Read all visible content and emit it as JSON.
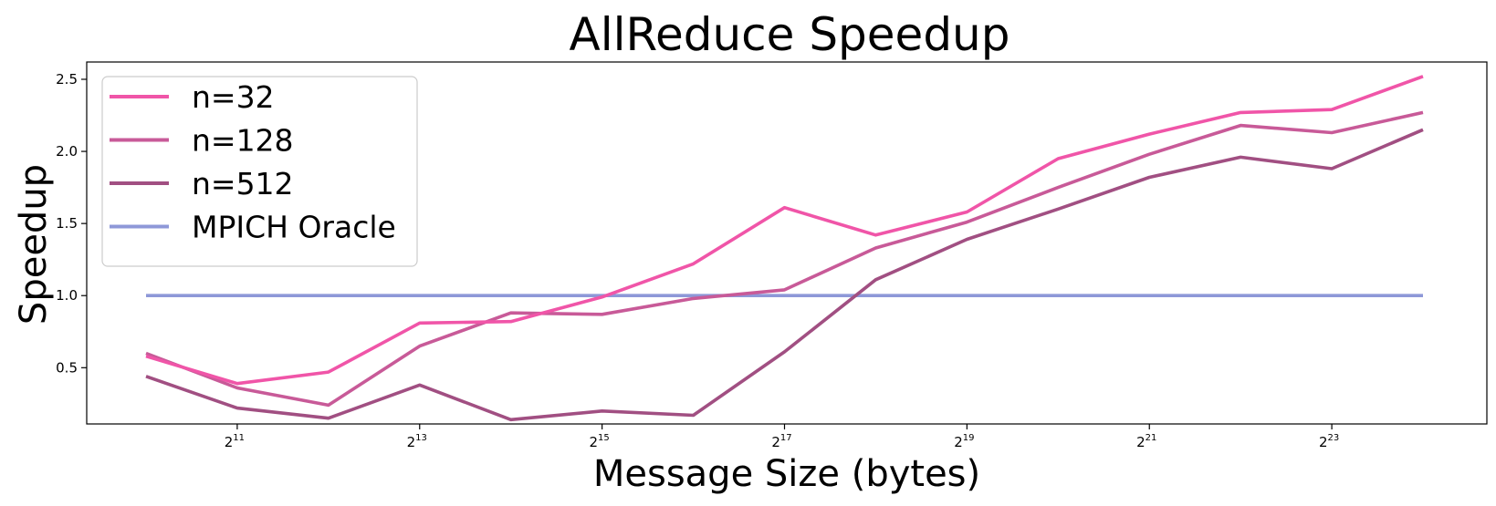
{
  "chart_data": {
    "type": "line",
    "title": "AllReduce Speedup",
    "xlabel": "Message Size (bytes)",
    "ylabel": "Speedup",
    "x_scale": "log2",
    "x": [
      10,
      11,
      12,
      13,
      14,
      15,
      16,
      17,
      18,
      19,
      20,
      21,
      22,
      23,
      24
    ],
    "xlim": [
      9.35,
      24.7
    ],
    "ylim": [
      0.11,
      2.62
    ],
    "x_ticks": [
      {
        "base": "2",
        "exp": "11",
        "value": 11
      },
      {
        "base": "2",
        "exp": "13",
        "value": 13
      },
      {
        "base": "2",
        "exp": "15",
        "value": 15
      },
      {
        "base": "2",
        "exp": "17",
        "value": 17
      },
      {
        "base": "2",
        "exp": "19",
        "value": 19
      },
      {
        "base": "2",
        "exp": "21",
        "value": 21
      },
      {
        "base": "2",
        "exp": "23",
        "value": 23
      }
    ],
    "y_ticks": [
      {
        "label": "0.5",
        "value": 0.5
      },
      {
        "label": "1.0",
        "value": 1.0
      },
      {
        "label": "1.5",
        "value": 1.5
      },
      {
        "label": "2.0",
        "value": 2.0
      },
      {
        "label": "2.5",
        "value": 2.5
      }
    ],
    "grid": false,
    "legend_position": "upper-left",
    "series": [
      {
        "name": "n=32",
        "color": "#f055a8",
        "values": [
          0.58,
          0.39,
          0.47,
          0.81,
          0.82,
          0.99,
          1.22,
          1.61,
          1.42,
          1.58,
          1.95,
          2.12,
          2.27,
          2.29,
          2.52
        ]
      },
      {
        "name": "n=128",
        "color": "#c85a98",
        "values": [
          0.6,
          0.36,
          0.24,
          0.65,
          0.88,
          0.87,
          0.98,
          1.04,
          1.33,
          1.51,
          1.75,
          1.98,
          2.18,
          2.13,
          2.27
        ]
      },
      {
        "name": "n=512",
        "color": "#a14f82",
        "values": [
          0.44,
          0.22,
          0.15,
          0.38,
          0.14,
          0.2,
          0.17,
          0.61,
          1.11,
          1.39,
          1.6,
          1.82,
          1.96,
          1.88,
          2.15
        ]
      },
      {
        "name": "MPICH Oracle",
        "color": "#8e98d8",
        "values": [
          1.0,
          1.0,
          1.0,
          1.0,
          1.0,
          1.0,
          1.0,
          1.0,
          1.0,
          1.0,
          1.0,
          1.0,
          1.0,
          1.0,
          1.0
        ]
      }
    ]
  }
}
